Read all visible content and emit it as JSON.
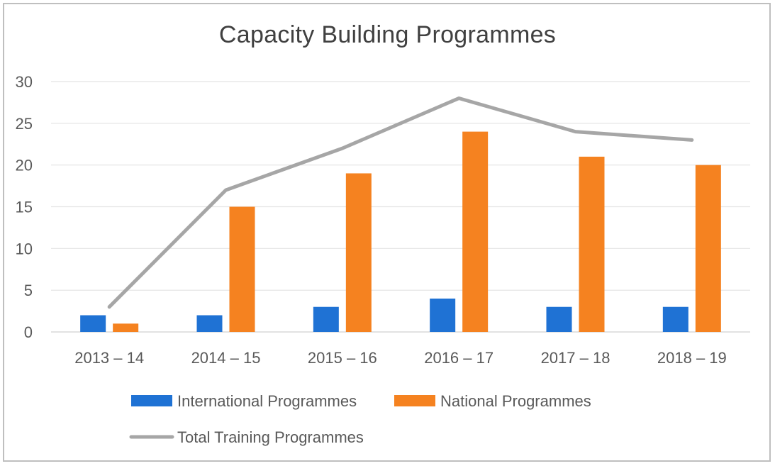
{
  "chart_data": {
    "type": "bar",
    "title": "Capacity Building Programmes",
    "categories": [
      "2013 – 14",
      "2014 – 15",
      "2015 – 16",
      "2016 – 17",
      "2017 – 18",
      "2018 – 19"
    ],
    "series": [
      {
        "name": "International Programmes",
        "type": "bar",
        "color": "#1f72d4",
        "values": [
          2,
          2,
          3,
          4,
          3,
          3
        ]
      },
      {
        "name": "National Programmes",
        "type": "bar",
        "color": "#f58220",
        "values": [
          1,
          15,
          19,
          24,
          21,
          20
        ]
      },
      {
        "name": "Total Training Programmes",
        "type": "line",
        "color": "#a6a6a6",
        "values": [
          3,
          17,
          22,
          28,
          24,
          23
        ]
      }
    ],
    "ylim": [
      0,
      30
    ],
    "yticks": [
      0,
      5,
      10,
      15,
      20,
      25,
      30
    ],
    "grid": true,
    "legend": "bottom"
  }
}
